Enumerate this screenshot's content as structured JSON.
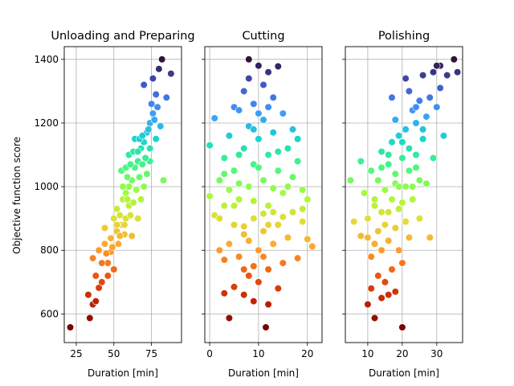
{
  "chart_data": {
    "type": "scatter",
    "ylabel": "Objective function score",
    "ylim": [
      510,
      1440
    ],
    "yticks": [
      600,
      800,
      1000,
      1200,
      1400
    ],
    "grid": true,
    "sharey": true,
    "colormap": "turbo",
    "color_by": "Objective function score",
    "marker_edge_color": "#ffffff",
    "panels": [
      {
        "title": "Unloading and Preparing",
        "xlabel": "Duration [min]",
        "xlim": [
          17,
          95
        ],
        "xticks": [
          25,
          50,
          75
        ],
        "points": [
          [
            21,
            558
          ],
          [
            34,
            587
          ],
          [
            36,
            630
          ],
          [
            38,
            640
          ],
          [
            33,
            660
          ],
          [
            40,
            682
          ],
          [
            42,
            700
          ],
          [
            46,
            720
          ],
          [
            50,
            740
          ],
          [
            36,
            775
          ],
          [
            40,
            800
          ],
          [
            44,
            820
          ],
          [
            48,
            838
          ],
          [
            52,
            860
          ],
          [
            55,
            880
          ],
          [
            58,
            900
          ],
          [
            52,
            930
          ],
          [
            56,
            960
          ],
          [
            58,
            980
          ],
          [
            60,
            1000
          ],
          [
            62,
            1020
          ],
          [
            55,
            1050
          ],
          [
            64,
            1060
          ],
          [
            66,
            1080
          ],
          [
            60,
            1100
          ],
          [
            68,
            1120
          ],
          [
            70,
            1140
          ],
          [
            64,
            1150
          ],
          [
            72,
            1170
          ],
          [
            74,
            1200
          ],
          [
            76,
            1230
          ],
          [
            75,
            1260
          ],
          [
            78,
            1290
          ],
          [
            70,
            1320
          ],
          [
            76,
            1340
          ],
          [
            80,
            1370
          ],
          [
            82,
            1400
          ],
          [
            88,
            1355
          ],
          [
            85,
            1280
          ],
          [
            83,
            1020
          ],
          [
            62,
            845
          ],
          [
            66,
            900
          ],
          [
            68,
            960
          ],
          [
            46,
            760
          ],
          [
            48,
            795
          ],
          [
            53,
            820
          ],
          [
            57,
            850
          ],
          [
            44,
            870
          ],
          [
            50,
            900
          ],
          [
            60,
            940
          ],
          [
            70,
            1000
          ],
          [
            72,
            1040
          ],
          [
            74,
            1080
          ],
          [
            56,
            1000
          ],
          [
            58,
            1060
          ],
          [
            63,
            1110
          ],
          [
            67,
            1150
          ],
          [
            73,
            1180
          ],
          [
            77,
            1210
          ],
          [
            79,
            1250
          ],
          [
            81,
            1190
          ],
          [
            38,
            720
          ],
          [
            42,
            760
          ],
          [
            45,
            790
          ],
          [
            49,
            810
          ],
          [
            54,
            845
          ],
          [
            57,
            880
          ],
          [
            61,
            910
          ],
          [
            63,
            950
          ],
          [
            65,
            990
          ],
          [
            67,
            1030
          ],
          [
            69,
            1070
          ],
          [
            71,
            1090
          ],
          [
            59,
            1030
          ],
          [
            61,
            1070
          ],
          [
            66,
            1110
          ],
          [
            69,
            1160
          ],
          [
            74,
            1120
          ],
          [
            78,
            1150
          ],
          [
            52,
            880
          ],
          [
            54,
            910
          ],
          [
            59,
            960
          ]
        ]
      },
      {
        "title": "Cutting",
        "xlabel": "Duration [min]",
        "xlim": [
          -1,
          23
        ],
        "xticks": [
          0,
          10,
          20
        ],
        "points": [
          [
            11.5,
            558
          ],
          [
            4,
            587
          ],
          [
            12,
            630
          ],
          [
            3,
            665
          ],
          [
            7,
            660
          ],
          [
            9,
            640
          ],
          [
            5,
            685
          ],
          [
            10,
            700
          ],
          [
            14,
            680
          ],
          [
            8,
            720
          ],
          [
            12,
            740
          ],
          [
            3,
            770
          ],
          [
            6,
            780
          ],
          [
            15,
            760
          ],
          [
            18,
            775
          ],
          [
            21,
            812
          ],
          [
            20,
            835
          ],
          [
            2,
            800
          ],
          [
            10,
            800
          ],
          [
            4,
            820
          ],
          [
            13,
            820
          ],
          [
            16,
            840
          ],
          [
            7,
            850
          ],
          [
            11,
            860
          ],
          [
            5,
            880
          ],
          [
            14,
            880
          ],
          [
            19,
            890
          ],
          [
            9,
            900
          ],
          [
            1,
            910
          ],
          [
            17,
            920
          ],
          [
            3,
            940
          ],
          [
            12,
            940
          ],
          [
            20,
            960
          ],
          [
            6,
            960
          ],
          [
            0,
            970
          ],
          [
            15,
            980
          ],
          [
            8,
            1000
          ],
          [
            19,
            990
          ],
          [
            2,
            1020
          ],
          [
            11,
            1020
          ],
          [
            17,
            1030
          ],
          [
            5,
            1050
          ],
          [
            14,
            1050
          ],
          [
            9,
            1070
          ],
          [
            18,
            1080
          ],
          [
            3,
            1090
          ],
          [
            12,
            1100
          ],
          [
            0,
            1130
          ],
          [
            7,
            1120
          ],
          [
            16,
            1120
          ],
          [
            10,
            1150
          ],
          [
            4,
            1160
          ],
          [
            13,
            1170
          ],
          [
            17,
            1180
          ],
          [
            8,
            1190
          ],
          [
            1,
            1215
          ],
          [
            11,
            1210
          ],
          [
            15,
            1230
          ],
          [
            5,
            1250
          ],
          [
            9,
            1260
          ],
          [
            13,
            1280
          ],
          [
            7,
            1300
          ],
          [
            11,
            1320
          ],
          [
            8,
            1340
          ],
          [
            12,
            1360
          ],
          [
            10,
            1380
          ],
          [
            8,
            1400
          ],
          [
            14,
            1378
          ],
          [
            6,
            1240
          ],
          [
            12,
            1250
          ],
          [
            10,
            1230
          ],
          [
            6,
            1010
          ],
          [
            13,
            995
          ],
          [
            9,
            955
          ],
          [
            11,
            915
          ],
          [
            7,
            875
          ],
          [
            15,
            905
          ],
          [
            8,
            830
          ],
          [
            12,
            880
          ],
          [
            4,
            990
          ],
          [
            16,
            1000
          ],
          [
            10,
            1060
          ],
          [
            14,
            1110
          ],
          [
            6,
            1100
          ],
          [
            9,
            1180
          ],
          [
            3,
            1040
          ],
          [
            18,
            1150
          ],
          [
            2,
            900
          ],
          [
            19,
            930
          ],
          [
            5,
            940
          ],
          [
            13,
            920
          ],
          [
            11,
            780
          ],
          [
            9,
            750
          ],
          [
            7,
            740
          ]
        ]
      },
      {
        "title": "Polishing",
        "xlabel": "Duration [min]",
        "xlim": [
          3.5,
          37.5
        ],
        "xticks": [
          10,
          20,
          30
        ],
        "points": [
          [
            20,
            558
          ],
          [
            12,
            587
          ],
          [
            10,
            630
          ],
          [
            14,
            650
          ],
          [
            16,
            660
          ],
          [
            18,
            670
          ],
          [
            11,
            680
          ],
          [
            15,
            700
          ],
          [
            13,
            720
          ],
          [
            17,
            740
          ],
          [
            20,
            760
          ],
          [
            11,
            780
          ],
          [
            14,
            800
          ],
          [
            19,
            800
          ],
          [
            12,
            820
          ],
          [
            16,
            830
          ],
          [
            22,
            840
          ],
          [
            28,
            840
          ],
          [
            8,
            845
          ],
          [
            13,
            860
          ],
          [
            18,
            870
          ],
          [
            15,
            880
          ],
          [
            6,
            890
          ],
          [
            21,
            890
          ],
          [
            10,
            900
          ],
          [
            25,
            900
          ],
          [
            14,
            920
          ],
          [
            19,
            930
          ],
          [
            12,
            940
          ],
          [
            17,
            960
          ],
          [
            23,
            960
          ],
          [
            9,
            980
          ],
          [
            15,
            990
          ],
          [
            21,
            1000
          ],
          [
            5,
            1020
          ],
          [
            13,
            1020
          ],
          [
            27,
            1010
          ],
          [
            18,
            1040
          ],
          [
            11,
            1050
          ],
          [
            24,
            1060
          ],
          [
            16,
            1070
          ],
          [
            8,
            1080
          ],
          [
            20,
            1090
          ],
          [
            29,
            1090
          ],
          [
            14,
            1110
          ],
          [
            22,
            1120
          ],
          [
            17,
            1140
          ],
          [
            26,
            1150
          ],
          [
            19,
            1160
          ],
          [
            32,
            1160
          ],
          [
            21,
            1180
          ],
          [
            24,
            1200
          ],
          [
            18,
            1210
          ],
          [
            27,
            1220
          ],
          [
            23,
            1240
          ],
          [
            30,
            1250
          ],
          [
            25,
            1270
          ],
          [
            17,
            1280
          ],
          [
            28,
            1280
          ],
          [
            22,
            1300
          ],
          [
            31,
            1310
          ],
          [
            21,
            1340
          ],
          [
            26,
            1350
          ],
          [
            33,
            1350
          ],
          [
            29,
            1360
          ],
          [
            31,
            1380
          ],
          [
            35,
            1400
          ],
          [
            36,
            1360
          ],
          [
            30,
            1380
          ],
          [
            24,
            1250
          ],
          [
            26,
            1180
          ],
          [
            20,
            1140
          ],
          [
            16,
            1100
          ],
          [
            12,
            960
          ],
          [
            18,
            1010
          ],
          [
            22,
            1050
          ],
          [
            24,
            1100
          ],
          [
            14,
            1060
          ],
          [
            19,
            1000
          ],
          [
            25,
            1020
          ],
          [
            10,
            840
          ],
          [
            16,
            920
          ],
          [
            20,
            950
          ],
          [
            23,
            1000
          ]
        ]
      }
    ]
  }
}
